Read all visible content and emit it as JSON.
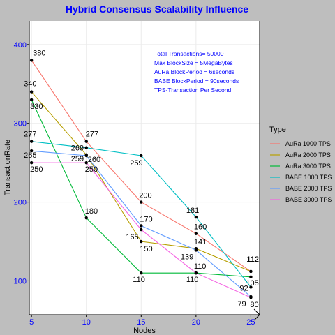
{
  "chart_data": {
    "type": "line",
    "title": "Hybrid Consensus Scalability Influence",
    "xlabel": "Nodes",
    "ylabel": "TransactionRate",
    "x": [
      5,
      10,
      15,
      20,
      25
    ],
    "xticks": [
      "5",
      "10",
      "15",
      "20",
      "25"
    ],
    "yticks": [
      100,
      200,
      300,
      400
    ],
    "xlim": [
      4.8,
      25.8
    ],
    "ylim": [
      57,
      430
    ],
    "grid": true,
    "legend_title": "Type",
    "legend_position": "right",
    "series": [
      {
        "name": "AuRa 1000 TPS",
        "color": "#f8766d",
        "values": [
          380,
          277,
          200,
          160,
          112
        ]
      },
      {
        "name": "AuRa 2000 TPS",
        "color": "#b79f00",
        "values": [
          340,
          260,
          150,
          141,
          112
        ]
      },
      {
        "name": "AuRa 3000 TPS",
        "color": "#00ba38",
        "values": [
          330,
          180,
          110,
          110,
          105
        ]
      },
      {
        "name": "BABE 1000 TPS",
        "color": "#00bfc4",
        "values": [
          277,
          269,
          259,
          181,
          92
        ]
      },
      {
        "name": "BABE 2000 TPS",
        "color": "#619cff",
        "values": [
          265,
          259,
          170,
          139,
          80
        ]
      },
      {
        "name": "BABE 3000 TPS",
        "color": "#f564e3",
        "values": [
          250,
          250,
          165,
          110,
          79
        ]
      }
    ],
    "annotations": [
      "Total Transactions= 50000",
      "Max BlockSize = 5MegaBytes",
      "AuRa BlockPeriod = 6seconds",
      "BABE BlockPeriod = 90seconds",
      "TPS-Transaction Per Second"
    ]
  }
}
